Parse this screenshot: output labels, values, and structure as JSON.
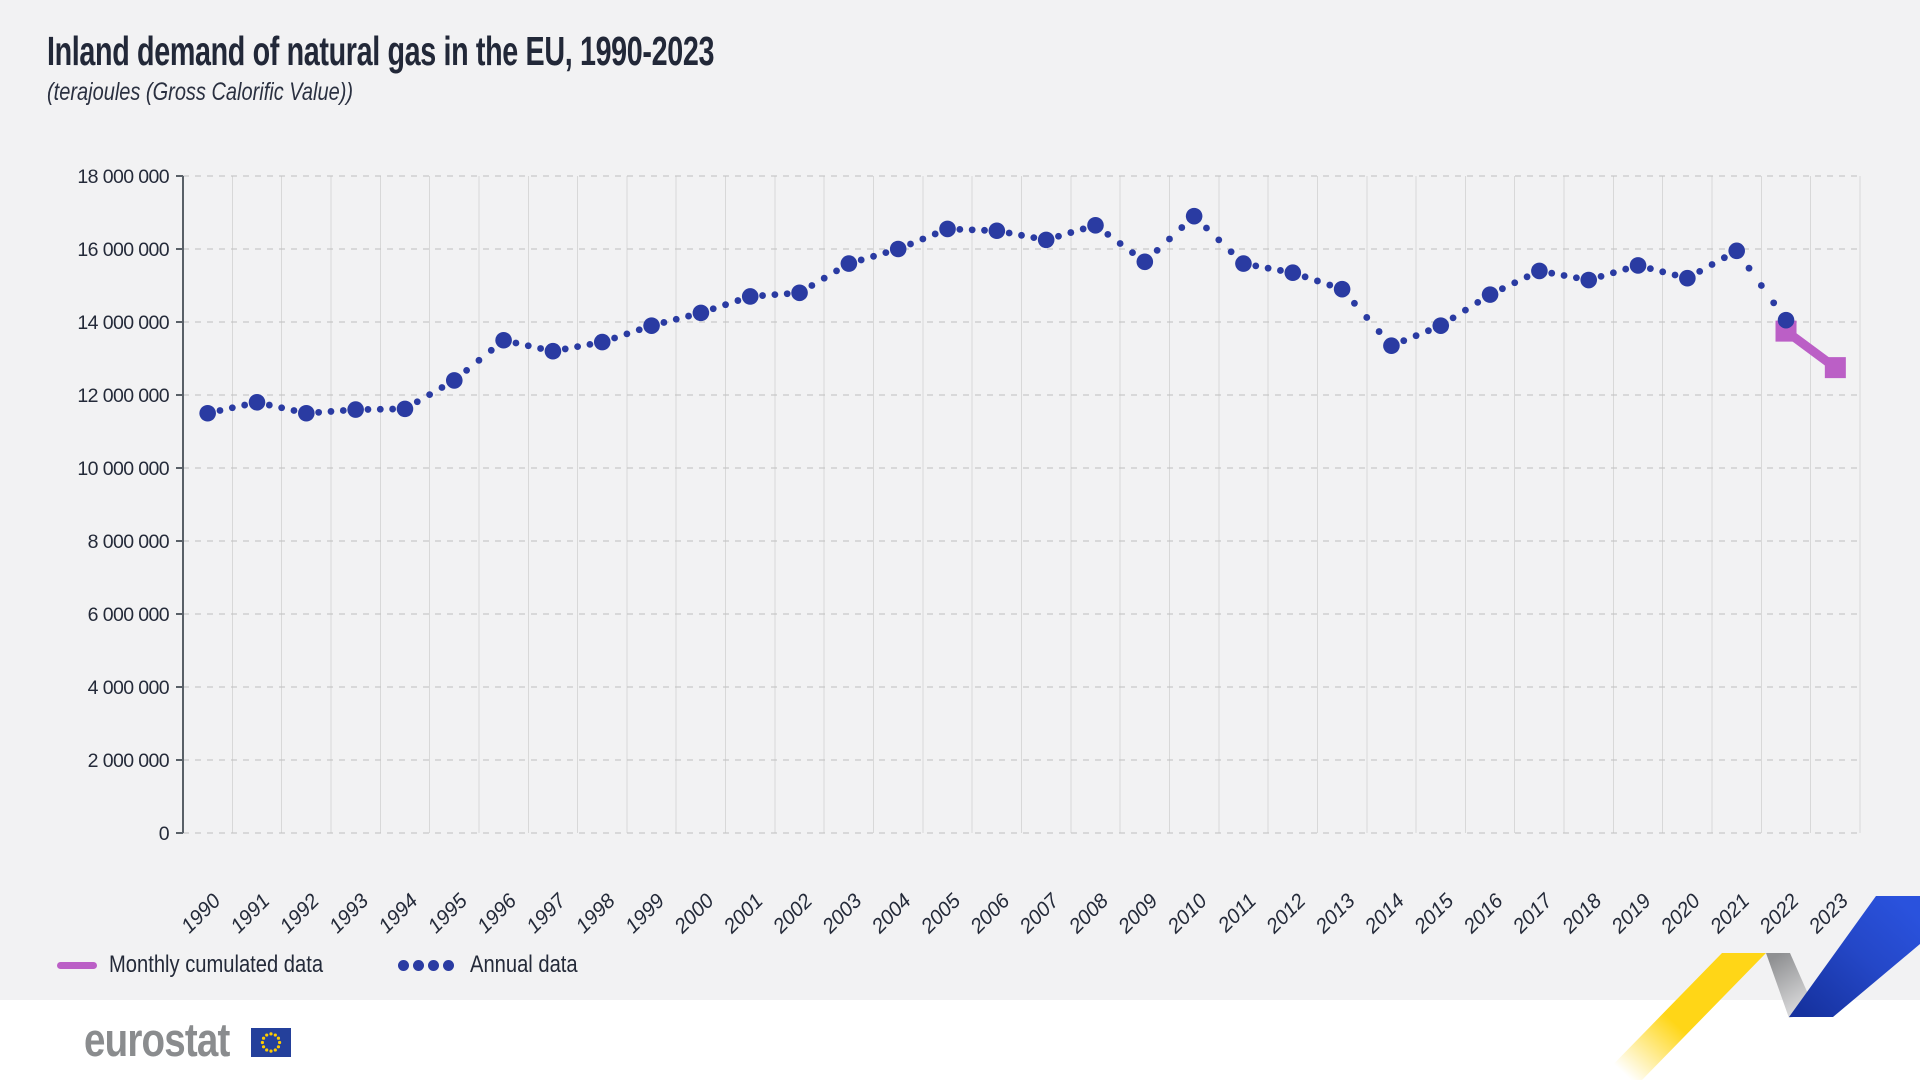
{
  "header": {
    "title": "Inland demand of natural gas in the EU, 1990-2023",
    "subtitle": "(terajoules (Gross Calorific Value))"
  },
  "legend": {
    "monthly_label": "Monthly cumulated data",
    "annual_label": "Annual data"
  },
  "footer": {
    "brand": "eurostat"
  },
  "colors": {
    "annual_blue": "#2a3ba2",
    "monthly_pink": "#bb5fc6",
    "text_navy": "#242a39",
    "grid_vertical": "#d8d8d8",
    "grid_horizontal": "#bfbfbf",
    "axis": "#596067",
    "background": "#f2f2f3",
    "footer_bg": "#ffffff",
    "brand_gray": "#8a8c8e",
    "flag_blue": "#24409b",
    "star_yellow": "#ffcc00",
    "ribbon_yellow": "#ffd617",
    "ribbon_blue": "#2447c7",
    "ribbon_gray": "#97989a"
  },
  "chart_data": {
    "type": "line",
    "title": "Inland demand of natural gas in the EU, 1990-2023",
    "xlabel": "",
    "ylabel": "terajoules (Gross Calorific Value)",
    "ylim": [
      0,
      18000000
    ],
    "grid": true,
    "legend_position": "bottom-left",
    "y_ticks": [
      "0",
      "2 000 000",
      "4 000 000",
      "6 000 000",
      "8 000 000",
      "10 000 000",
      "12 000 000",
      "14 000 000",
      "16 000 000",
      "18 000 000"
    ],
    "x": [
      "1990",
      "1991",
      "1992",
      "1993",
      "1994",
      "1995",
      "1996",
      "1997",
      "1998",
      "1999",
      "2000",
      "2001",
      "2002",
      "2003",
      "2004",
      "2005",
      "2006",
      "2007",
      "2008",
      "2009",
      "2010",
      "2011",
      "2012",
      "2013",
      "2014",
      "2015",
      "2016",
      "2017",
      "2018",
      "2019",
      "2020",
      "2021",
      "2022",
      "2023"
    ],
    "series": [
      {
        "name": "Annual data",
        "style": "dotted",
        "color": "#2a3ba2",
        "values": [
          11500000,
          11800000,
          11500000,
          11600000,
          11620000,
          12400000,
          13500000,
          13200000,
          13450000,
          13900000,
          14250000,
          14700000,
          14800000,
          15600000,
          16000000,
          16550000,
          16500000,
          16250000,
          16650000,
          15650000,
          16900000,
          15600000,
          15350000,
          14900000,
          13350000,
          13900000,
          14750000,
          15400000,
          15150000,
          15550000,
          15200000,
          15950000,
          14050000,
          null
        ]
      },
      {
        "name": "Monthly cumulated data",
        "style": "solid",
        "color": "#bb5fc6",
        "values": [
          null,
          null,
          null,
          null,
          null,
          null,
          null,
          null,
          null,
          null,
          null,
          null,
          null,
          null,
          null,
          null,
          null,
          null,
          null,
          null,
          null,
          null,
          null,
          null,
          null,
          null,
          null,
          null,
          null,
          null,
          null,
          null,
          13750000,
          12750000
        ]
      }
    ]
  }
}
